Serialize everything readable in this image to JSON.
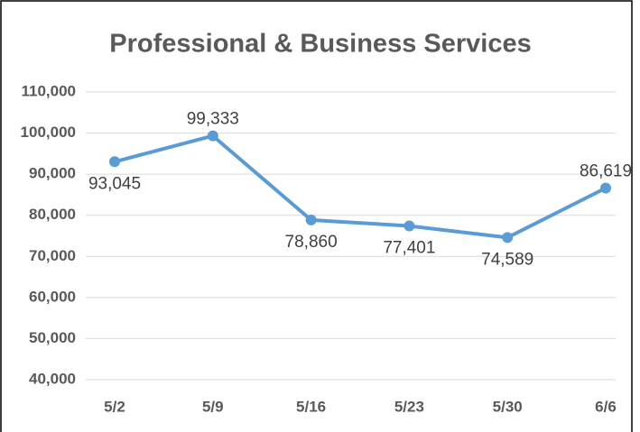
{
  "chart_data": {
    "type": "line",
    "title": "Professional & Business Services",
    "categories": [
      "5/2",
      "5/9",
      "5/16",
      "5/23",
      "5/30",
      "6/6"
    ],
    "series": [
      {
        "name": "Professional & Business Services",
        "color": "#5b9bd5",
        "values": [
          93045,
          99333,
          78860,
          77401,
          74589,
          86619
        ],
        "value_labels": [
          "93,045",
          "99,333",
          "78,860",
          "77,401",
          "74,589",
          "86,619"
        ]
      }
    ],
    "ylim": [
      40000,
      110000
    ],
    "yticks": [
      {
        "value": 40000,
        "label": "40,000"
      },
      {
        "value": 50000,
        "label": "50,000"
      },
      {
        "value": 60000,
        "label": "60,000"
      },
      {
        "value": 70000,
        "label": "70,000"
      },
      {
        "value": 80000,
        "label": "80,000"
      },
      {
        "value": 90000,
        "label": "90,000"
      },
      {
        "value": 100000,
        "label": "100,000"
      },
      {
        "value": 110000,
        "label": "110,000"
      }
    ],
    "grid": true
  }
}
